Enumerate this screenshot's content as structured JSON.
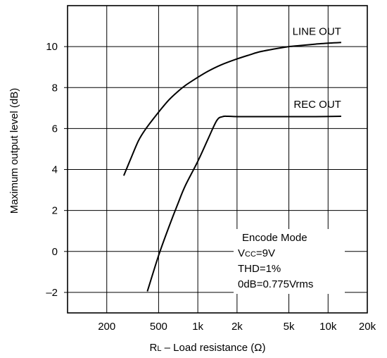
{
  "chart_data": {
    "type": "line",
    "title": "",
    "xlabel": "RL – Load resistance (Ω)",
    "xlabel_main": "R",
    "xlabel_sub": "L",
    "xlabel_rest": " – Load resistance (Ω)",
    "ylabel": "Maximum output level (dB)",
    "x_scale": "log",
    "xlim": [
      100,
      20000
    ],
    "ylim": [
      -3,
      12
    ],
    "grid": true,
    "x_ticks": [
      {
        "value": 200,
        "label": "200"
      },
      {
        "value": 500,
        "label": "500"
      },
      {
        "value": 1000,
        "label": "1k"
      },
      {
        "value": 2000,
        "label": "2k"
      },
      {
        "value": 5000,
        "label": "5k"
      },
      {
        "value": 10000,
        "label": "10k"
      },
      {
        "value": 20000,
        "label": "20k"
      }
    ],
    "y_ticks": [
      {
        "value": -2,
        "label": "–2"
      },
      {
        "value": 0,
        "label": "0"
      },
      {
        "value": 2,
        "label": "2"
      },
      {
        "value": 4,
        "label": "4"
      },
      {
        "value": 6,
        "label": "6"
      },
      {
        "value": 8,
        "label": "8"
      },
      {
        "value": 10,
        "label": "10"
      }
    ],
    "series": [
      {
        "name": "LINE OUT",
        "x": [
          270,
          300,
          350,
          400,
          500,
          600,
          700,
          800,
          1000,
          1200,
          1500,
          2000,
          2500,
          3000,
          4000,
          5000,
          6000,
          8000,
          10000,
          12600
        ],
        "y": [
          3.7,
          4.4,
          5.4,
          6.0,
          6.8,
          7.4,
          7.8,
          8.1,
          8.5,
          8.8,
          9.1,
          9.4,
          9.6,
          9.75,
          9.9,
          10.0,
          10.05,
          10.12,
          10.17,
          10.2
        ]
      },
      {
        "name": "REC OUT",
        "x": [
          410,
          500,
          600,
          700,
          800,
          1000,
          1200,
          1400,
          1550,
          1700,
          2000,
          3000,
          5000,
          8000,
          12600
        ],
        "y": [
          -1.95,
          -0.2,
          1.2,
          2.3,
          3.2,
          4.4,
          5.5,
          6.4,
          6.58,
          6.6,
          6.58,
          6.58,
          6.58,
          6.58,
          6.6
        ]
      }
    ],
    "annotations": [
      {
        "text": "Encode  Mode"
      },
      {
        "text_main": "V",
        "text_sub": "CC",
        "text_rest": "=9V",
        "text": "VCC=9V"
      },
      {
        "text": "THD=1%"
      },
      {
        "text": "0dB=0.775Vrms"
      }
    ]
  }
}
